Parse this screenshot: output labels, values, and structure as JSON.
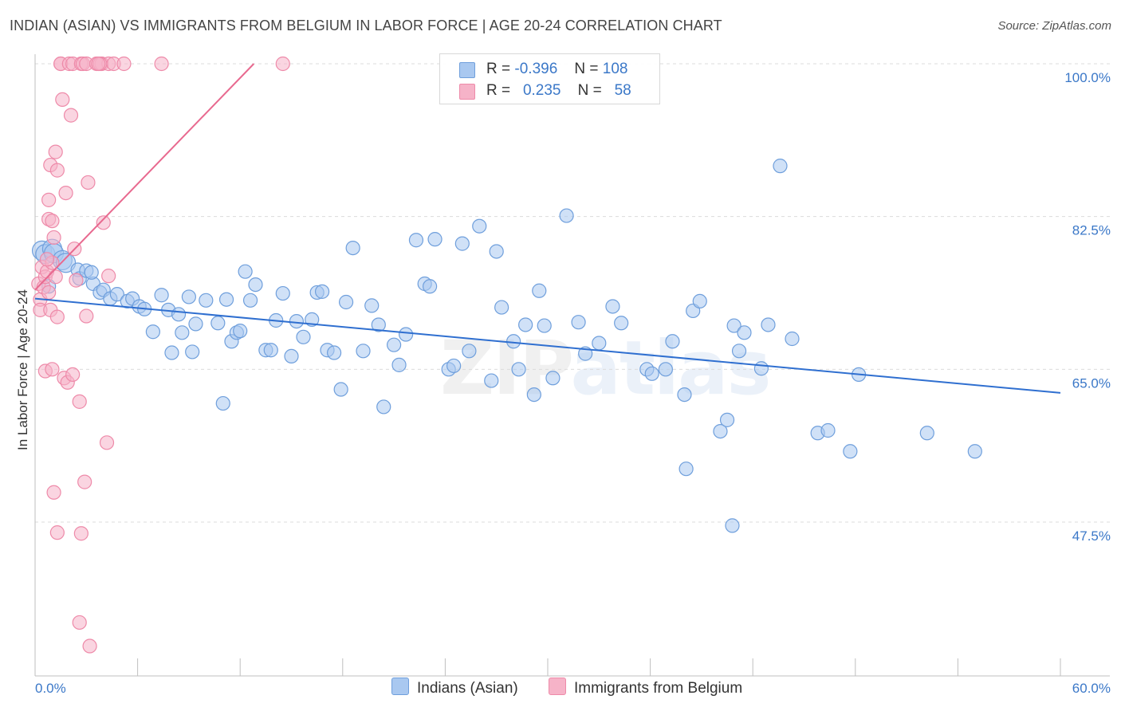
{
  "title": "INDIAN (ASIAN) VS IMMIGRANTS FROM BELGIUM IN LABOR FORCE | AGE 20-24 CORRELATION CHART",
  "source": "Source: ZipAtlas.com",
  "watermark": {
    "part1": "ZIP",
    "part2": "atlas"
  },
  "legend_top": {
    "rows": [
      {
        "r_label": "R =",
        "r_value": "-0.396",
        "n_label": "N =",
        "n_value": "108"
      },
      {
        "r_label": "R =",
        "r_value": "0.235",
        "n_label": "N =",
        "n_value": "58"
      }
    ]
  },
  "legend_bottom": {
    "items": [
      "Indians (Asian)",
      "Immigrants from Belgium"
    ]
  },
  "chart_data": {
    "type": "scatter",
    "ylabel": "In Labor Force | Age 20-24",
    "xlim": [
      0,
      60
    ],
    "ylim": [
      30,
      102
    ],
    "x_tick_labels": [
      "0.0%",
      "60.0%"
    ],
    "y_ticks": [
      {
        "value": 100.0,
        "label": "100.0%"
      },
      {
        "value": 82.5,
        "label": "82.5%"
      },
      {
        "value": 65.0,
        "label": "65.0%"
      },
      {
        "value": 47.5,
        "label": "47.5%"
      }
    ],
    "grid": true,
    "legend_position": "top-center",
    "colors": {
      "blue_fill": "#a9c8f0",
      "blue_stroke": "#6f9fdc",
      "blue_line": "#2f6fd0",
      "pink_fill": "#f6b3c8",
      "pink_stroke": "#ee8aa9",
      "pink_line": "#e8698f",
      "tick_text": "#3b78c8"
    },
    "series": [
      {
        "name": "Indians (Asian)",
        "color": "#a9c8f0",
        "points": [
          [
            0.4,
            78.6
          ],
          [
            0.6,
            78.2
          ],
          [
            1.0,
            78.8
          ],
          [
            1.1,
            78.3
          ],
          [
            1.6,
            77.5
          ],
          [
            1.8,
            77.2
          ],
          [
            2.5,
            76.4
          ],
          [
            2.6,
            75.4
          ],
          [
            3.0,
            76.3
          ],
          [
            3.4,
            74.8
          ],
          [
            3.8,
            73.8
          ],
          [
            4.0,
            74.1
          ],
          [
            4.4,
            73.1
          ],
          [
            4.8,
            73.6
          ],
          [
            5.4,
            72.8
          ],
          [
            5.7,
            73.1
          ],
          [
            6.1,
            72.2
          ],
          [
            6.4,
            71.9
          ],
          [
            6.9,
            69.3
          ],
          [
            7.4,
            73.5
          ],
          [
            7.8,
            71.8
          ],
          [
            8.0,
            66.9
          ],
          [
            8.4,
            71.3
          ],
          [
            8.6,
            69.2
          ],
          [
            9.0,
            73.3
          ],
          [
            9.4,
            70.2
          ],
          [
            9.2,
            67.0
          ],
          [
            10.0,
            72.9
          ],
          [
            10.7,
            70.3
          ],
          [
            11.2,
            73.0
          ],
          [
            11.0,
            61.1
          ],
          [
            11.5,
            68.2
          ],
          [
            11.8,
            69.2
          ],
          [
            12.0,
            69.4
          ],
          [
            12.3,
            76.2
          ],
          [
            12.6,
            72.9
          ],
          [
            12.9,
            74.7
          ],
          [
            13.5,
            67.2
          ],
          [
            13.8,
            67.2
          ],
          [
            14.1,
            70.6
          ],
          [
            14.5,
            73.7
          ],
          [
            15.0,
            66.5
          ],
          [
            15.3,
            70.5
          ],
          [
            15.7,
            68.7
          ],
          [
            16.2,
            70.7
          ],
          [
            16.5,
            73.8
          ],
          [
            16.8,
            73.9
          ],
          [
            17.1,
            67.2
          ],
          [
            17.5,
            66.9
          ],
          [
            17.9,
            62.7
          ],
          [
            18.2,
            72.7
          ],
          [
            18.6,
            78.9
          ],
          [
            19.2,
            67.1
          ],
          [
            19.7,
            72.3
          ],
          [
            20.1,
            70.1
          ],
          [
            20.4,
            60.7
          ],
          [
            21.0,
            67.8
          ],
          [
            21.3,
            65.5
          ],
          [
            21.7,
            69.0
          ],
          [
            22.3,
            79.8
          ],
          [
            22.8,
            74.8
          ],
          [
            23.1,
            74.5
          ],
          [
            23.4,
            79.9
          ],
          [
            24.2,
            65.0
          ],
          [
            24.5,
            65.4
          ],
          [
            25.0,
            79.4
          ],
          [
            25.4,
            67.1
          ],
          [
            26.0,
            81.4
          ],
          [
            26.7,
            63.7
          ],
          [
            27.0,
            78.5
          ],
          [
            27.3,
            72.1
          ],
          [
            28.0,
            68.2
          ],
          [
            28.3,
            65.0
          ],
          [
            28.7,
            70.1
          ],
          [
            29.2,
            62.1
          ],
          [
            29.5,
            74.0
          ],
          [
            29.8,
            70.0
          ],
          [
            30.3,
            64.0
          ],
          [
            31.1,
            82.6
          ],
          [
            31.8,
            70.4
          ],
          [
            32.2,
            66.8
          ],
          [
            33.0,
            68.0
          ],
          [
            33.8,
            72.2
          ],
          [
            34.3,
            70.3
          ],
          [
            35.8,
            65.0
          ],
          [
            36.1,
            64.5
          ],
          [
            36.9,
            65.0
          ],
          [
            37.3,
            68.2
          ],
          [
            38.0,
            62.1
          ],
          [
            38.5,
            71.7
          ],
          [
            38.9,
            72.8
          ],
          [
            38.1,
            53.6
          ],
          [
            40.1,
            57.9
          ],
          [
            40.5,
            59.2
          ],
          [
            40.8,
            47.1
          ],
          [
            40.9,
            70.0
          ],
          [
            41.2,
            67.1
          ],
          [
            41.5,
            69.2
          ],
          [
            42.5,
            65.1
          ],
          [
            42.9,
            70.1
          ],
          [
            43.6,
            88.3
          ],
          [
            44.3,
            68.5
          ],
          [
            45.8,
            57.7
          ],
          [
            46.4,
            58.0
          ],
          [
            47.7,
            55.6
          ],
          [
            48.2,
            64.4
          ],
          [
            52.2,
            57.7
          ],
          [
            55.0,
            55.6
          ],
          [
            0.8,
            74.5
          ],
          [
            3.3,
            76.1
          ]
        ],
        "trend": {
          "x0": 0,
          "y0": 73.1,
          "x1": 60,
          "y1": 62.3
        }
      },
      {
        "name": "Immigrants from Belgium",
        "color": "#f6b3c8",
        "points": [
          [
            0.2,
            74.8
          ],
          [
            0.3,
            73.0
          ],
          [
            0.3,
            71.8
          ],
          [
            0.4,
            76.7
          ],
          [
            0.5,
            74.4
          ],
          [
            0.6,
            75.6
          ],
          [
            0.7,
            76.2
          ],
          [
            0.8,
            73.8
          ],
          [
            0.9,
            71.8
          ],
          [
            1.0,
            77.2
          ],
          [
            0.7,
            77.6
          ],
          [
            1.1,
            80.1
          ],
          [
            0.6,
            64.8
          ],
          [
            1.2,
            75.6
          ],
          [
            1.3,
            71.0
          ],
          [
            1.0,
            65.0
          ],
          [
            0.8,
            84.4
          ],
          [
            0.8,
            82.2
          ],
          [
            0.9,
            88.4
          ],
          [
            1.0,
            82.0
          ],
          [
            1.2,
            89.9
          ],
          [
            1.3,
            87.8
          ],
          [
            1.5,
            100.0
          ],
          [
            1.1,
            50.9
          ],
          [
            1.3,
            46.3
          ],
          [
            1.5,
            100.0
          ],
          [
            1.6,
            95.9
          ],
          [
            1.7,
            64.0
          ],
          [
            1.8,
            85.2
          ],
          [
            1.9,
            63.5
          ],
          [
            2.0,
            100.0
          ],
          [
            2.1,
            94.1
          ],
          [
            2.2,
            64.4
          ],
          [
            2.2,
            100.0
          ],
          [
            2.3,
            78.8
          ],
          [
            2.4,
            75.2
          ],
          [
            2.6,
            61.3
          ],
          [
            2.7,
            100.0
          ],
          [
            2.8,
            100.0
          ],
          [
            2.7,
            46.2
          ],
          [
            2.9,
            52.1
          ],
          [
            3.0,
            100.0
          ],
          [
            3.0,
            71.1
          ],
          [
            2.6,
            36.0
          ],
          [
            3.1,
            86.4
          ],
          [
            3.2,
            33.3
          ],
          [
            3.6,
            100.0
          ],
          [
            3.9,
            100.0
          ],
          [
            4.0,
            81.8
          ],
          [
            4.3,
            100.0
          ],
          [
            3.8,
            100.0
          ],
          [
            3.7,
            100.0
          ],
          [
            4.2,
            56.6
          ],
          [
            4.3,
            75.7
          ],
          [
            4.6,
            100.0
          ],
          [
            5.2,
            100.0
          ],
          [
            7.4,
            100.0
          ],
          [
            14.5,
            100.0
          ]
        ],
        "trend": {
          "x0": 0,
          "y0": 74.1,
          "x1": 12.8,
          "y1": 100.0
        }
      }
    ]
  }
}
